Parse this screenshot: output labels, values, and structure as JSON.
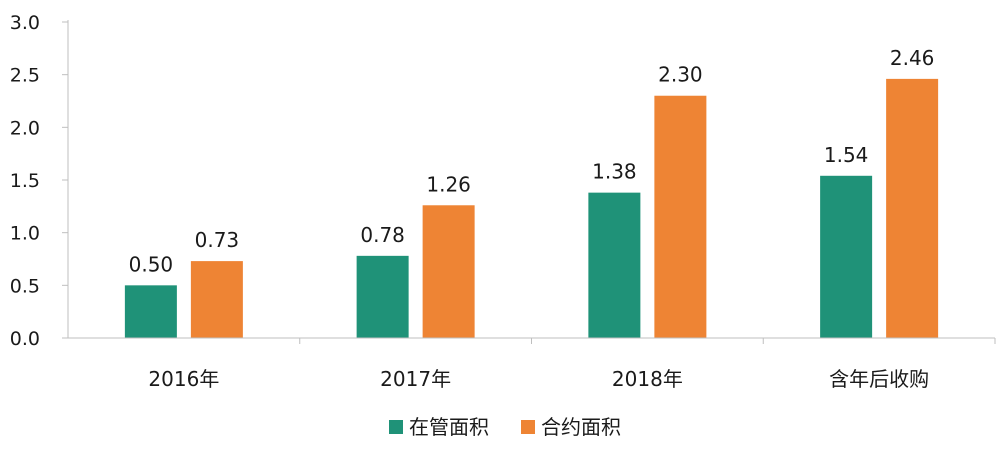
{
  "chart_data": {
    "type": "bar",
    "categories": [
      "2016年",
      "2017年",
      "2018年",
      "含年后收购"
    ],
    "series": [
      {
        "name": "在管面积",
        "values": [
          0.5,
          0.78,
          1.38,
          1.54
        ],
        "color": "#1f9278",
        "labels": [
          "0.50",
          "0.78",
          "1.38",
          "1.54"
        ]
      },
      {
        "name": "合约面积",
        "values": [
          0.73,
          1.26,
          2.3,
          2.46
        ],
        "color": "#ee8434",
        "labels": [
          "0.73",
          "1.26",
          "2.30",
          "2.46"
        ]
      }
    ],
    "yticks": [
      "0.0",
      "0.5",
      "1.0",
      "1.5",
      "2.0",
      "2.5",
      "3.0"
    ],
    "ylim": [
      0,
      3.0
    ],
    "grid": false,
    "legend_position": "bottom"
  }
}
